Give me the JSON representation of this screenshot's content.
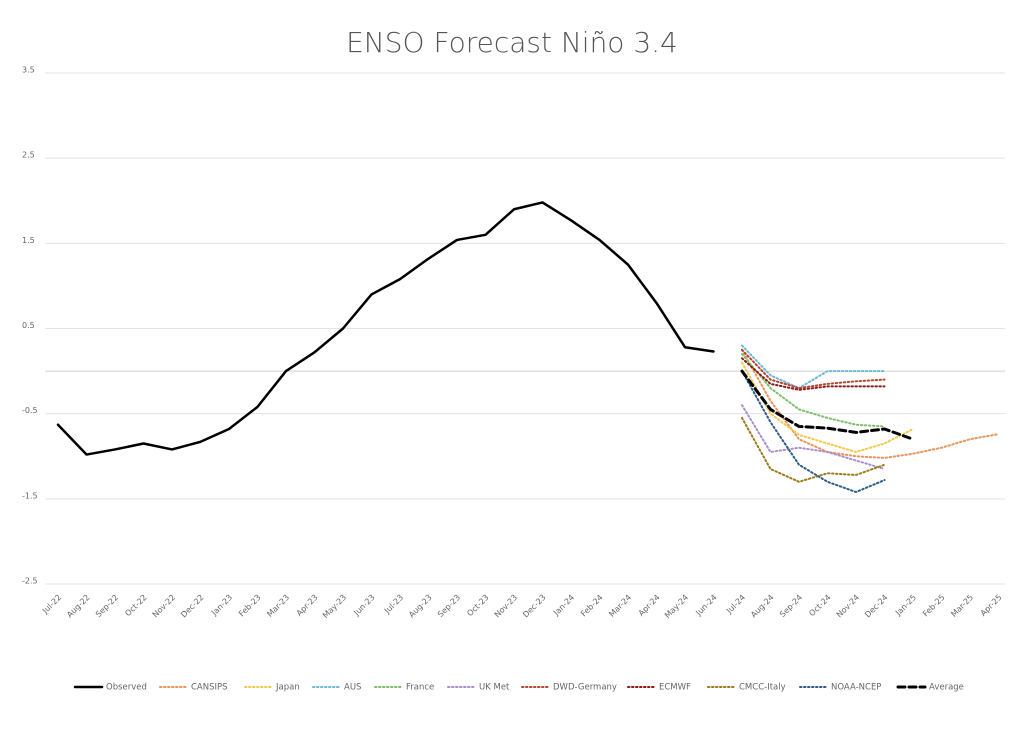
{
  "chart_data": {
    "type": "line",
    "title": "ENSO Forecast Niño 3.4",
    "categories": [
      "Jul-22",
      "Aug-22",
      "Sep-22",
      "Oct-22",
      "Nov-22",
      "Dec-22",
      "Jan-23",
      "Feb-23",
      "Mar-23",
      "Apr-23",
      "May-23",
      "Jun-23",
      "Jul-23",
      "Aug-23",
      "Sep-23",
      "Oct-23",
      "Nov-23",
      "Dec-23",
      "Jan-24",
      "Feb-24",
      "Mar-24",
      "Apr-24",
      "May-24",
      "Jun-24",
      "Jul-24",
      "Aug-24",
      "Sep-24",
      "Oct-24",
      "Nov-24",
      "Dec-24",
      "Jan-25",
      "Feb-25",
      "Mar-25",
      "Apr-25"
    ],
    "ylim": [
      -2.5,
      3.5
    ],
    "yticks": [
      3.5,
      2.5,
      1.5,
      0.5,
      -0.5,
      -1.5,
      -2.5
    ],
    "grid": true,
    "legend": "bottom",
    "series": [
      {
        "name": "Observed",
        "color": "#000000",
        "style": "solid",
        "values": [
          -0.63,
          -0.98,
          -0.92,
          -0.85,
          -0.92,
          -0.83,
          -0.68,
          -0.42,
          0.0,
          0.22,
          0.5,
          0.9,
          1.08,
          1.32,
          1.54,
          1.6,
          1.9,
          1.98,
          1.77,
          1.54,
          1.25,
          0.8,
          0.28,
          0.23,
          null,
          null,
          null,
          null,
          null,
          null,
          null,
          null,
          null,
          null
        ]
      },
      {
        "name": "CANSIPS",
        "color": "#e8945a",
        "style": "dotted",
        "values": [
          null,
          null,
          null,
          null,
          null,
          null,
          null,
          null,
          null,
          null,
          null,
          null,
          null,
          null,
          null,
          null,
          null,
          null,
          null,
          null,
          null,
          null,
          null,
          null,
          0.25,
          -0.35,
          -0.8,
          -0.95,
          -1.0,
          -1.02,
          -0.97,
          -0.9,
          -0.8,
          -0.74
        ]
      },
      {
        "name": "Japan",
        "color": "#f2c94c",
        "style": "dotted",
        "values": [
          null,
          null,
          null,
          null,
          null,
          null,
          null,
          null,
          null,
          null,
          null,
          null,
          null,
          null,
          null,
          null,
          null,
          null,
          null,
          null,
          null,
          null,
          null,
          null,
          0.1,
          -0.5,
          -0.75,
          -0.85,
          -0.95,
          -0.85,
          -0.68,
          null,
          null,
          null
        ]
      },
      {
        "name": "AUS",
        "color": "#6bb8d6",
        "style": "dotted",
        "values": [
          null,
          null,
          null,
          null,
          null,
          null,
          null,
          null,
          null,
          null,
          null,
          null,
          null,
          null,
          null,
          null,
          null,
          null,
          null,
          null,
          null,
          null,
          null,
          null,
          0.3,
          -0.05,
          -0.2,
          0.0,
          0.0,
          0.0,
          null,
          null,
          null,
          null
        ]
      },
      {
        "name": "France",
        "color": "#7fbf6a",
        "style": "dotted",
        "values": [
          null,
          null,
          null,
          null,
          null,
          null,
          null,
          null,
          null,
          null,
          null,
          null,
          null,
          null,
          null,
          null,
          null,
          null,
          null,
          null,
          null,
          null,
          null,
          null,
          0.2,
          -0.2,
          -0.45,
          -0.55,
          -0.63,
          -0.65,
          null,
          null,
          null,
          null
        ]
      },
      {
        "name": "UK Met",
        "color": "#a98fd0",
        "style": "dotted",
        "values": [
          null,
          null,
          null,
          null,
          null,
          null,
          null,
          null,
          null,
          null,
          null,
          null,
          null,
          null,
          null,
          null,
          null,
          null,
          null,
          null,
          null,
          null,
          null,
          null,
          -0.4,
          -0.95,
          -0.9,
          -0.95,
          -1.05,
          -1.15,
          null,
          null,
          null,
          null
        ]
      },
      {
        "name": "DWD-Germany",
        "color": "#b5452e",
        "style": "dotted",
        "values": [
          null,
          null,
          null,
          null,
          null,
          null,
          null,
          null,
          null,
          null,
          null,
          null,
          null,
          null,
          null,
          null,
          null,
          null,
          null,
          null,
          null,
          null,
          null,
          null,
          0.25,
          -0.1,
          -0.2,
          -0.15,
          -0.12,
          -0.1,
          null,
          null,
          null,
          null
        ]
      },
      {
        "name": "ECMWF",
        "color": "#8b1a1a",
        "style": "dotted",
        "values": [
          null,
          null,
          null,
          null,
          null,
          null,
          null,
          null,
          null,
          null,
          null,
          null,
          null,
          null,
          null,
          null,
          null,
          null,
          null,
          null,
          null,
          null,
          null,
          null,
          0.15,
          -0.15,
          -0.22,
          -0.18,
          -0.18,
          -0.18,
          null,
          null,
          null,
          null
        ]
      },
      {
        "name": "CMCC-Italy",
        "color": "#9b7a1a",
        "style": "dotted",
        "values": [
          null,
          null,
          null,
          null,
          null,
          null,
          null,
          null,
          null,
          null,
          null,
          null,
          null,
          null,
          null,
          null,
          null,
          null,
          null,
          null,
          null,
          null,
          null,
          null,
          -0.55,
          -1.15,
          -1.3,
          -1.2,
          -1.22,
          -1.1,
          null,
          null,
          null,
          null
        ]
      },
      {
        "name": "NOAA-NCEP",
        "color": "#2e5c8a",
        "style": "dotted",
        "values": [
          null,
          null,
          null,
          null,
          null,
          null,
          null,
          null,
          null,
          null,
          null,
          null,
          null,
          null,
          null,
          null,
          null,
          null,
          null,
          null,
          null,
          null,
          null,
          null,
          0.0,
          -0.6,
          -1.1,
          -1.3,
          -1.42,
          -1.28,
          null,
          null,
          null,
          null
        ]
      },
      {
        "name": "Average",
        "color": "#000000",
        "style": "dashed",
        "values": [
          null,
          null,
          null,
          null,
          null,
          null,
          null,
          null,
          null,
          null,
          null,
          null,
          null,
          null,
          null,
          null,
          null,
          null,
          null,
          null,
          null,
          null,
          null,
          null,
          0.0,
          -0.45,
          -0.65,
          -0.67,
          -0.72,
          -0.68,
          -0.8,
          null,
          null,
          null
        ]
      }
    ]
  }
}
